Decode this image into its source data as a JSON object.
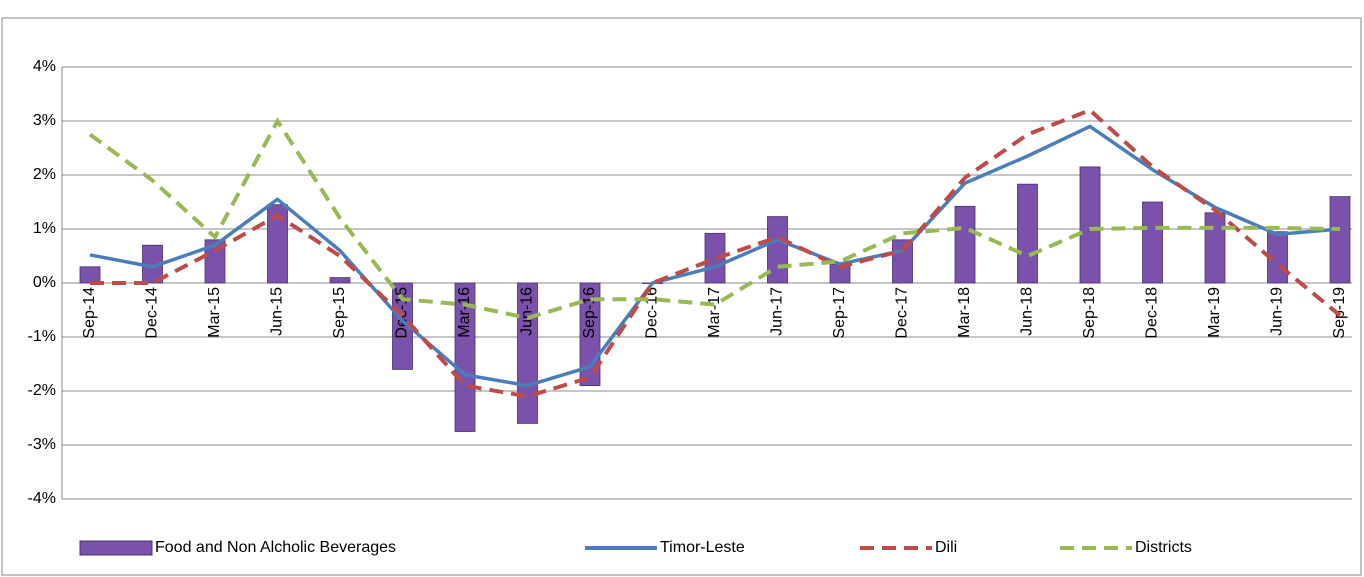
{
  "chart_data": {
    "type": "bar-line",
    "categories": [
      "Sep-14",
      "Dec-14",
      "Mar-15",
      "Jun-15",
      "Sep-15",
      "Dec-15",
      "Mar-16",
      "Jun-16",
      "Sep-16",
      "Dec-16",
      "Mar-17",
      "Jun-17",
      "Sep-17",
      "Dec-17",
      "Mar-18",
      "Jun-18",
      "Sep-18",
      "Dec-18",
      "Mar-19",
      "Jun-19",
      "Sep-19"
    ],
    "series": [
      {
        "name": "Food and Non Alcholic Beverages",
        "type": "bar",
        "color": "#7b52ab",
        "values": [
          0.3,
          0.7,
          0.8,
          1.45,
          0.1,
          -1.6,
          -2.75,
          -2.6,
          -1.9,
          0,
          0.92,
          1.23,
          0.35,
          0.8,
          1.42,
          1.83,
          2.15,
          1.5,
          1.3,
          0.95,
          1.6
        ]
      },
      {
        "name": "Timor-Leste",
        "type": "line",
        "dash": false,
        "color": "#4a7ebb",
        "values": [
          0.52,
          0.3,
          0.7,
          1.55,
          0.6,
          -0.7,
          -1.7,
          -1.9,
          -1.55,
          0,
          0.3,
          0.8,
          0.35,
          0.6,
          1.85,
          2.35,
          2.9,
          2.1,
          1.4,
          0.9,
          1.0
        ]
      },
      {
        "name": "Dili",
        "type": "line",
        "dash": true,
        "color": "#be4b48",
        "values": [
          0,
          0,
          0.6,
          1.25,
          0.5,
          -0.6,
          -1.9,
          -2.1,
          -1.75,
          0,
          0.45,
          0.85,
          0.3,
          0.6,
          1.95,
          2.75,
          3.2,
          2.15,
          1.35,
          0.35,
          -0.6
        ]
      },
      {
        "name": "Districts",
        "type": "line",
        "dash": true,
        "color": "#98b954",
        "values": [
          2.75,
          1.9,
          0.85,
          3.0,
          1.2,
          -0.3,
          -0.4,
          -0.65,
          -0.3,
          -0.3,
          -0.4,
          0.3,
          0.4,
          0.92,
          1.02,
          0.5,
          1.0,
          1.02,
          1.02,
          1.02,
          1.0
        ]
      }
    ],
    "ylim": [
      -4,
      4
    ],
    "yticks": [
      {
        "value": -4,
        "label": "-4%"
      },
      {
        "value": -3,
        "label": "-3%"
      },
      {
        "value": -2,
        "label": "-2%"
      },
      {
        "value": -1,
        "label": "-1%"
      },
      {
        "value": 0,
        "label": "0%"
      },
      {
        "value": 1,
        "label": "1%"
      },
      {
        "value": 2,
        "label": "2%"
      },
      {
        "value": 3,
        "label": "3%"
      },
      {
        "value": 4,
        "label": "4%"
      }
    ],
    "grid": true,
    "legend": "bottom"
  }
}
